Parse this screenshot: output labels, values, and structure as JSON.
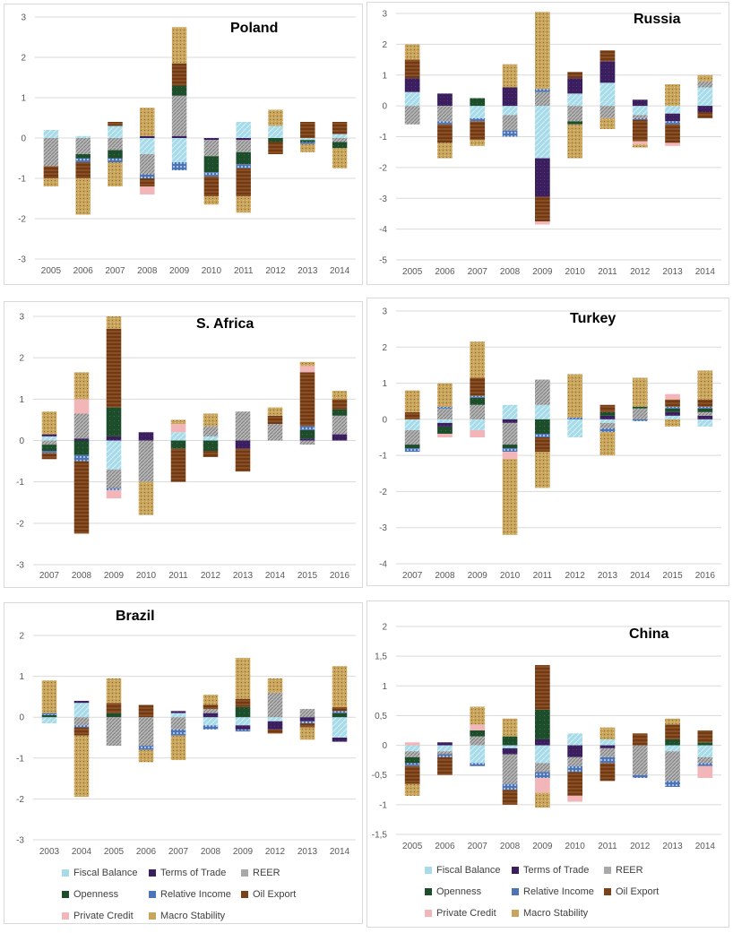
{
  "series_styles": [
    {
      "key": "fb",
      "name": "Fiscal Balance",
      "color": "#a7dbe9"
    },
    {
      "key": "tot",
      "name": "Terms of Trade",
      "color": "#3b1e5e"
    },
    {
      "key": "reer",
      "name": "REER",
      "color": "#a9a9a9"
    },
    {
      "key": "open",
      "name": "Openness",
      "color": "#1d4d2b"
    },
    {
      "key": "ri",
      "name": "Relative Income",
      "color": "#4d74b5"
    },
    {
      "key": "oil",
      "name": "Oil Export",
      "color": "#7a4219"
    },
    {
      "key": "pc",
      "name": "Private Credit",
      "color": "#f3b6b8"
    },
    {
      "key": "ms",
      "name": "Macro Stability",
      "color": "#c8a45c"
    }
  ],
  "legend_left": [
    [
      "Fiscal Balance",
      "Terms of Trade",
      "REER"
    ],
    [
      "Openness",
      "Relative Income",
      "Oil Export"
    ],
    [
      "Private Credit",
      "Macro Stability"
    ]
  ],
  "legend_right": [
    [
      "Fiscal Balance",
      "Terms of Trade",
      "REER"
    ],
    [
      "Openness",
      "Relative Income",
      "Oil Export"
    ],
    [
      "Private Credit",
      "Macro Stability"
    ]
  ],
  "chart_data": [
    {
      "type": "bar",
      "title": "Poland",
      "categories": [
        "2005",
        "2006",
        "2007",
        "2008",
        "2009",
        "2010",
        "2011",
        "2012",
        "2013",
        "2014"
      ],
      "ylim": [
        -3,
        3
      ],
      "yticks": [
        "3",
        "2",
        "1",
        "0",
        "-1",
        "-2",
        "-3"
      ],
      "series": [
        {
          "name": "Fiscal Balance",
          "values": [
            0.2,
            0.05,
            0.3,
            -0.4,
            -0.6,
            0,
            0.4,
            0.3,
            -0.05,
            0.1
          ]
        },
        {
          "name": "Terms of Trade",
          "values": [
            0,
            0,
            0,
            0.05,
            0.05,
            -0.05,
            -0.05,
            0,
            0,
            0
          ]
        },
        {
          "name": "REER",
          "values": [
            -0.7,
            -0.4,
            -0.3,
            -0.5,
            1.0,
            -0.4,
            -0.3,
            0,
            0,
            -0.1
          ]
        },
        {
          "name": "Openness",
          "values": [
            0,
            -0.1,
            -0.2,
            0,
            0.25,
            -0.4,
            -0.3,
            -0.1,
            -0.05,
            -0.15
          ]
        },
        {
          "name": "Relative Income",
          "values": [
            0,
            -0.1,
            -0.1,
            -0.1,
            -0.2,
            -0.1,
            -0.1,
            0,
            -0.05,
            0
          ]
        },
        {
          "name": "Oil Export",
          "values": [
            -0.3,
            -0.4,
            0.1,
            -0.2,
            0.55,
            -0.5,
            -0.7,
            -0.3,
            0.4,
            0.3
          ]
        },
        {
          "name": "Private Credit",
          "values": [
            0,
            0,
            0,
            -0.2,
            0,
            0,
            0,
            0,
            0,
            0
          ]
        },
        {
          "name": "Macro Stability",
          "values": [
            -0.2,
            -0.9,
            -0.6,
            0.7,
            0.9,
            -0.2,
            -0.4,
            0.4,
            -0.2,
            -0.5
          ]
        }
      ]
    },
    {
      "type": "bar",
      "title": "Russia",
      "categories": [
        "2005",
        "2006",
        "2007",
        "2008",
        "2009",
        "2010",
        "2011",
        "2012",
        "2013",
        "2014"
      ],
      "ylim": [
        -5,
        3
      ],
      "yticks": [
        "3",
        "2",
        "1",
        "0",
        "-1",
        "-2",
        "-3",
        "-4",
        "-5"
      ],
      "series": [
        {
          "name": "Fiscal Balance",
          "values": [
            0.45,
            0,
            -0.4,
            -0.3,
            -1.7,
            0.4,
            0.75,
            -0.3,
            -0.25,
            0.6
          ]
        },
        {
          "name": "Terms of Trade",
          "values": [
            0.45,
            0.4,
            0,
            0.6,
            -1.25,
            0.5,
            0.7,
            0.2,
            -0.25,
            -0.2
          ]
        },
        {
          "name": "REER",
          "values": [
            -0.6,
            -0.5,
            0,
            -0.5,
            0.45,
            -0.5,
            -0.4,
            -0.1,
            0,
            0.2
          ]
        },
        {
          "name": "Openness",
          "values": [
            0,
            0,
            0.25,
            0,
            0,
            -0.1,
            0,
            0,
            0,
            0
          ]
        },
        {
          "name": "Relative Income",
          "values": [
            0,
            -0.1,
            -0.1,
            -0.2,
            0.1,
            0,
            0,
            -0.05,
            -0.1,
            0
          ]
        },
        {
          "name": "Oil Export",
          "values": [
            0.6,
            -0.6,
            -0.6,
            0,
            -0.8,
            0.2,
            0.35,
            -0.7,
            -0.6,
            -0.2
          ]
        },
        {
          "name": "Private Credit",
          "values": [
            0,
            0,
            0,
            0,
            -0.1,
            0,
            0,
            -0.1,
            -0.1,
            0
          ]
        },
        {
          "name": "Macro Stability",
          "values": [
            0.5,
            -0.5,
            -0.2,
            0.75,
            2.5,
            -1.1,
            -0.35,
            -0.1,
            0.7,
            0.2
          ]
        }
      ]
    },
    {
      "type": "bar",
      "title": "S. Africa",
      "categories": [
        "2007",
        "2008",
        "2009",
        "2010",
        "2011",
        "2012",
        "2013",
        "2014",
        "2015",
        "2016"
      ],
      "ylim": [
        -3,
        3
      ],
      "yticks": [
        "3",
        "2",
        "1",
        "0",
        "-1",
        "-2",
        "-3"
      ],
      "series": [
        {
          "name": "Fiscal Balance",
          "values": [
            0.1,
            0,
            -0.7,
            0,
            0.2,
            0.1,
            0,
            0,
            0,
            0
          ]
        },
        {
          "name": "Terms of Trade",
          "values": [
            0.05,
            0.05,
            0.1,
            0.2,
            0,
            0,
            -0.2,
            0,
            0.05,
            0.15
          ]
        },
        {
          "name": "REER",
          "values": [
            -0.1,
            0.6,
            -0.45,
            -1.0,
            0,
            0.25,
            0.7,
            0.4,
            -0.1,
            0.45
          ]
        },
        {
          "name": "Openness",
          "values": [
            -0.15,
            -0.35,
            0.7,
            0,
            -0.2,
            -0.25,
            0,
            0,
            0.2,
            0.15
          ]
        },
        {
          "name": "Relative Income",
          "values": [
            -0.05,
            -0.15,
            -0.05,
            0,
            0,
            0,
            0,
            0,
            0.1,
            0
          ]
        },
        {
          "name": "Oil Export",
          "values": [
            -0.15,
            -1.75,
            1.9,
            0,
            -0.8,
            -0.15,
            -0.55,
            0.2,
            1.3,
            0.25
          ]
        },
        {
          "name": "Private Credit",
          "values": [
            0,
            0.35,
            -0.2,
            0,
            0.2,
            0,
            0,
            0,
            0.15,
            0
          ]
        },
        {
          "name": "Macro Stability",
          "values": [
            0.55,
            0.65,
            0.3,
            -0.8,
            0.1,
            0.3,
            0,
            0.2,
            0.1,
            0.2
          ]
        }
      ]
    },
    {
      "type": "bar",
      "title": "Turkey",
      "categories": [
        "2007",
        "2008",
        "2009",
        "2010",
        "2011",
        "2012",
        "2013",
        "2014",
        "2015",
        "2016"
      ],
      "ylim": [
        -4,
        3
      ],
      "yticks": [
        "3",
        "2",
        "1",
        "0",
        "-1",
        "-2",
        "-3",
        "-4"
      ],
      "series": [
        {
          "name": "Fiscal Balance",
          "values": [
            -0.3,
            -0.1,
            -0.3,
            0.4,
            0.4,
            -0.5,
            -0.1,
            0,
            0.1,
            -0.2
          ]
        },
        {
          "name": "Terms of Trade",
          "values": [
            0,
            -0.1,
            0,
            -0.1,
            0,
            0,
            0.1,
            0,
            0.1,
            0.1
          ]
        },
        {
          "name": "REER",
          "values": [
            -0.4,
            0.3,
            0.4,
            -0.6,
            0.7,
            0,
            -0.15,
            0.3,
            0,
            0.1
          ]
        },
        {
          "name": "Openness",
          "values": [
            -0.1,
            -0.2,
            0.2,
            -0.1,
            -0.4,
            0,
            0.1,
            0.05,
            0.1,
            0.1
          ]
        },
        {
          "name": "Relative Income",
          "values": [
            -0.1,
            0.05,
            0.05,
            -0.1,
            -0.1,
            0.05,
            -0.1,
            -0.05,
            0.05,
            0.05
          ]
        },
        {
          "name": "Oil Export",
          "values": [
            0.2,
            0,
            0.5,
            0,
            -0.4,
            0,
            0.2,
            0,
            0.2,
            0.2
          ]
        },
        {
          "name": "Private Credit",
          "values": [
            0,
            -0.1,
            -0.2,
            -0.2,
            0,
            0,
            0,
            0,
            0.15,
            0
          ]
        },
        {
          "name": "Macro Stability",
          "values": [
            0.6,
            0.65,
            1.0,
            -2.1,
            -1.0,
            1.2,
            -0.65,
            0.8,
            -0.2,
            0.8
          ]
        }
      ]
    },
    {
      "type": "bar",
      "title": "Brazil",
      "categories": [
        "2003",
        "2004",
        "2005",
        "2006",
        "2007",
        "2008",
        "2009",
        "2012",
        "2013",
        "2014"
      ],
      "ylim": [
        -3,
        2
      ],
      "yticks": [
        "2",
        "1",
        "0",
        "-1",
        "-2",
        "-3"
      ],
      "series": [
        {
          "name": "Fiscal Balance",
          "values": [
            -0.15,
            0.35,
            0,
            0,
            0.1,
            -0.2,
            -0.2,
            -0.1,
            0,
            -0.5
          ]
        },
        {
          "name": "Terms of Trade",
          "values": [
            0,
            0.05,
            0,
            0,
            0.05,
            0.1,
            -0.1,
            -0.2,
            -0.1,
            -0.1
          ]
        },
        {
          "name": "REER",
          "values": [
            0,
            -0.2,
            -0.7,
            -0.7,
            -0.3,
            0.1,
            0,
            0.6,
            0.2,
            0
          ]
        },
        {
          "name": "Openness",
          "values": [
            0.05,
            0,
            0.1,
            0,
            0,
            0,
            0.25,
            0,
            0,
            0.1
          ]
        },
        {
          "name": "Relative Income",
          "values": [
            0.05,
            -0.05,
            0,
            -0.1,
            -0.15,
            -0.1,
            -0.05,
            0,
            -0.05,
            0.05
          ]
        },
        {
          "name": "Oil Export",
          "values": [
            0,
            -0.2,
            0.25,
            0.3,
            0,
            0.1,
            0.2,
            -0.1,
            -0.1,
            0.1
          ]
        },
        {
          "name": "Private Credit",
          "values": [
            0,
            0,
            0,
            0,
            0,
            0,
            0,
            0,
            0,
            0
          ]
        },
        {
          "name": "Macro Stability",
          "values": [
            0.8,
            -1.5,
            0.6,
            -0.3,
            -0.6,
            0.25,
            1.0,
            0.35,
            -0.3,
            1.0
          ]
        }
      ]
    },
    {
      "type": "bar",
      "title": "China",
      "categories": [
        "2005",
        "2006",
        "2007",
        "2008",
        "2009",
        "2010",
        "2011",
        "2012",
        "2013",
        "2014"
      ],
      "ylim": [
        -1.5,
        2
      ],
      "yticks": [
        "2",
        "1,5",
        "1",
        "0,5",
        "0",
        "-0,5",
        "-1",
        "-1,5"
      ],
      "series": [
        {
          "name": "Fiscal Balance",
          "values": [
            -0.1,
            -0.1,
            -0.3,
            -0.05,
            -0.3,
            0.2,
            0.1,
            0,
            -0.1,
            -0.2
          ]
        },
        {
          "name": "Terms of Trade",
          "values": [
            0,
            0.05,
            0,
            -0.1,
            0.1,
            -0.2,
            -0.05,
            0,
            0,
            0
          ]
        },
        {
          "name": "REER",
          "values": [
            -0.1,
            -0.05,
            0.15,
            -0.5,
            -0.15,
            -0.15,
            -0.15,
            -0.5,
            -0.5,
            -0.1
          ]
        },
        {
          "name": "Openness",
          "values": [
            -0.1,
            0,
            0.1,
            0.15,
            0.5,
            0,
            0,
            0,
            0.1,
            0.05
          ]
        },
        {
          "name": "Relative Income",
          "values": [
            -0.05,
            -0.05,
            -0.05,
            -0.1,
            -0.1,
            -0.1,
            -0.1,
            -0.05,
            -0.1,
            -0.05
          ]
        },
        {
          "name": "Oil Export",
          "values": [
            -0.3,
            -0.3,
            0,
            -0.25,
            0.75,
            -0.4,
            -0.3,
            0.2,
            0.25,
            0.2
          ]
        },
        {
          "name": "Private Credit",
          "values": [
            0.05,
            0,
            0.1,
            0,
            -0.25,
            -0.1,
            0,
            0,
            0,
            -0.2
          ]
        },
        {
          "name": "Macro Stability",
          "values": [
            -0.2,
            0,
            0.3,
            0.3,
            -0.25,
            0,
            0.2,
            0,
            0.1,
            0
          ]
        }
      ]
    }
  ]
}
